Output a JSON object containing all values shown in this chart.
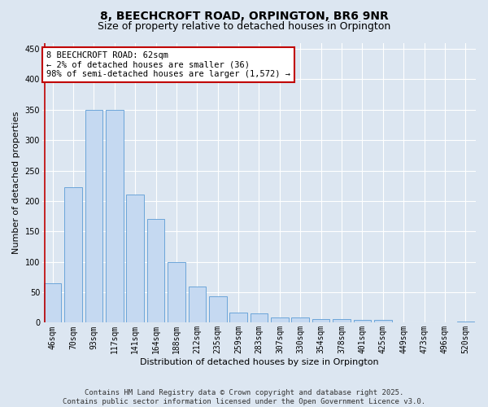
{
  "title": "8, BEECHCROFT ROAD, ORPINGTON, BR6 9NR",
  "subtitle": "Size of property relative to detached houses in Orpington",
  "xlabel": "Distribution of detached houses by size in Orpington",
  "ylabel": "Number of detached properties",
  "categories": [
    "46sqm",
    "70sqm",
    "93sqm",
    "117sqm",
    "141sqm",
    "164sqm",
    "188sqm",
    "212sqm",
    "235sqm",
    "259sqm",
    "283sqm",
    "307sqm",
    "330sqm",
    "354sqm",
    "378sqm",
    "401sqm",
    "425sqm",
    "449sqm",
    "473sqm",
    "496sqm",
    "520sqm"
  ],
  "values": [
    65,
    222,
    350,
    350,
    210,
    170,
    100,
    60,
    43,
    17,
    15,
    8,
    8,
    6,
    6,
    5,
    5,
    1,
    1,
    1,
    2
  ],
  "bar_color": "#c5d9f1",
  "bar_edge_color": "#5b9bd5",
  "highlight_line_color": "#c00000",
  "background_color": "#dce6f1",
  "plot_bg_color": "#dce6f1",
  "grid_color": "#ffffff",
  "annotation_line1": "8 BEECHCROFT ROAD: 62sqm",
  "annotation_line2": "← 2% of detached houses are smaller (36)",
  "annotation_line3": "98% of semi-detached houses are larger (1,572) →",
  "annotation_box_color": "#ffffff",
  "annotation_edge_color": "#c00000",
  "ylim": [
    0,
    460
  ],
  "yticks": [
    0,
    50,
    100,
    150,
    200,
    250,
    300,
    350,
    400,
    450
  ],
  "footer_line1": "Contains HM Land Registry data © Crown copyright and database right 2025.",
  "footer_line2": "Contains public sector information licensed under the Open Government Licence v3.0.",
  "title_fontsize": 10,
  "subtitle_fontsize": 9,
  "axis_label_fontsize": 8,
  "tick_fontsize": 7,
  "annotation_fontsize": 7.5,
  "footer_fontsize": 6.5
}
